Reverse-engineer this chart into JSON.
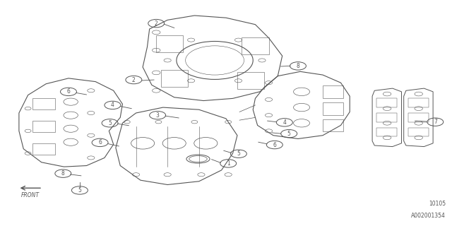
{
  "background_color": "#ffffff",
  "border_color": "#aaaaaa",
  "line_color": "#555555",
  "text_color": "#555555",
  "bottom_right_text1": "10105",
  "bottom_right_text2": "A002001354",
  "front_label": "FRONT",
  "fig_width": 6.4,
  "fig_height": 3.2,
  "dpi": 100
}
